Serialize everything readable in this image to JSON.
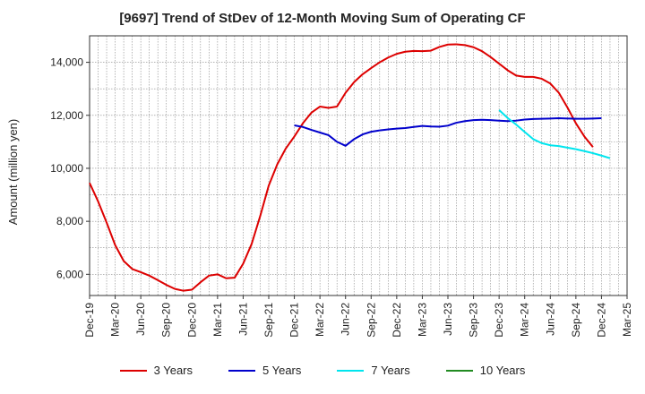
{
  "chart_data": {
    "type": "line",
    "title": "[9697]  Trend of StDev of 12-Month Moving Sum of Operating CF",
    "ylabel": "Amount (million yen)",
    "xlabel": "",
    "ylim": [
      5200,
      15000
    ],
    "yticks": [
      6000,
      8000,
      10000,
      12000,
      14000
    ],
    "ytick_labels": [
      "6,000",
      "8,000",
      "10,000",
      "12,000",
      "14,000"
    ],
    "x_tick_labels": [
      "Dec-19",
      "Mar-20",
      "Jun-20",
      "Sep-20",
      "Dec-20",
      "Mar-21",
      "Jun-21",
      "Sep-21",
      "Dec-21",
      "Mar-22",
      "Jun-22",
      "Sep-22",
      "Dec-22",
      "Mar-23",
      "Jun-23",
      "Sep-23",
      "Dec-23",
      "Mar-24",
      "Jun-24",
      "Sep-24",
      "Dec-24",
      "Mar-25"
    ],
    "grid": true,
    "legend_position": "bottom",
    "series": [
      {
        "name": "3 Years",
        "color": "#dd0000",
        "start_index": 0,
        "values": [
          9450,
          8750,
          7950,
          7100,
          6500,
          6200,
          6080,
          5950,
          5780,
          5600,
          5450,
          5380,
          5420,
          5700,
          5950,
          6000,
          5850,
          5870,
          6400,
          7150,
          8200,
          9350,
          10150,
          10750,
          11200,
          11700,
          12100,
          12330,
          12280,
          12330,
          12850,
          13250,
          13550,
          13780,
          14000,
          14180,
          14320,
          14400,
          14430,
          14420,
          14440,
          14580,
          14670,
          14680,
          14650,
          14570,
          14420,
          14200,
          13950,
          13700,
          13500,
          13450,
          13450,
          13380,
          13200,
          12850,
          12300,
          11700,
          11200,
          10800
        ]
      },
      {
        "name": "5 Years",
        "color": "#0000cc",
        "start_index": 24,
        "values": [
          11620,
          11560,
          11450,
          11350,
          11250,
          11000,
          10850,
          11100,
          11280,
          11380,
          11430,
          11470,
          11500,
          11520,
          11560,
          11600,
          11580,
          11570,
          11610,
          11720,
          11780,
          11820,
          11830,
          11820,
          11800,
          11780,
          11800,
          11840,
          11860,
          11870,
          11880,
          11890,
          11880,
          11870,
          11870,
          11880,
          11890
        ]
      },
      {
        "name": "7 Years",
        "color": "#00e5ee",
        "start_index": 48,
        "values": [
          12200,
          11900,
          11650,
          11370,
          11100,
          10950,
          10870,
          10840,
          10780,
          10720,
          10650,
          10570,
          10480,
          10380
        ]
      },
      {
        "name": "10 Years",
        "color": "#228b22",
        "start_index": 0,
        "values": []
      }
    ]
  }
}
